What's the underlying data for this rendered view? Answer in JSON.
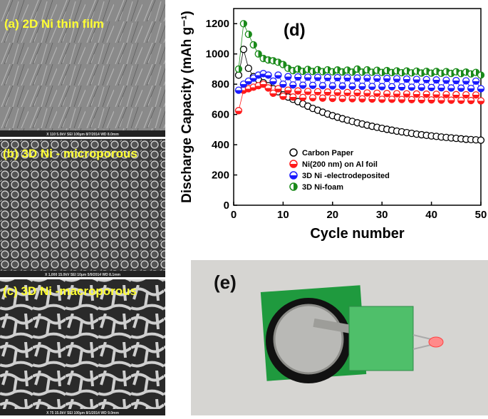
{
  "panels": [
    {
      "label": "(a) 2D Ni thin film",
      "info": "X 110  5.0kV  SEI  100µm  8/7/2014  WD 8.0mm"
    },
    {
      "label": "(b) 3D Ni - microporous",
      "info": "X 1,000  15.0kV  SEI  10µm  5/9/2014  WD 8.1mm"
    },
    {
      "label": "(c) 3D Ni -macroporous",
      "info": "X 75  15.0kV  SEI  100µm  8/1/2014  WD 9.0mm"
    }
  ],
  "chart_data": {
    "type": "line",
    "panel_label": "(d)",
    "x_label": "Cycle number",
    "y_label": "Discharge Capacity (mAh g⁻¹)",
    "x": [
      1,
      2,
      3,
      4,
      5,
      6,
      7,
      8,
      9,
      10,
      11,
      12,
      13,
      14,
      15,
      16,
      17,
      18,
      19,
      20,
      21,
      22,
      23,
      24,
      25,
      26,
      27,
      28,
      29,
      30,
      31,
      32,
      33,
      34,
      35,
      36,
      37,
      38,
      39,
      40,
      41,
      42,
      43,
      44,
      45,
      46,
      47,
      48,
      49,
      50
    ],
    "xlim": [
      0,
      50
    ],
    "xticks": [
      0,
      10,
      20,
      30,
      40,
      50
    ],
    "ylim": [
      0,
      1300
    ],
    "yticks": [
      0,
      200,
      400,
      600,
      800,
      1000,
      1200
    ],
    "series": [
      {
        "name": "Carbon Paper",
        "color": "#000000",
        "values": [
          860,
          1030,
          905,
          850,
          830,
          810,
          790,
          770,
          750,
          730,
          715,
          700,
          685,
          670,
          655,
          640,
          628,
          615,
          603,
          592,
          582,
          572,
          563,
          554,
          545,
          537,
          529,
          522,
          515,
          508,
          502,
          496,
          490,
          485,
          480,
          475,
          470,
          466,
          462,
          458,
          455,
          451,
          448,
          445,
          442,
          439,
          436,
          434,
          432,
          430
        ]
      },
      {
        "name": "Ni(200 nm) on Al foil",
        "color": "#ff1a1a",
        "values": [
          625,
          760,
          770,
          780,
          790,
          800,
          775,
          740,
          770,
          720,
          760,
          715,
          755,
          712,
          752,
          710,
          750,
          708,
          748,
          706,
          746,
          705,
          745,
          704,
          744,
          703,
          742,
          702,
          740,
          700,
          738,
          700,
          737,
          699,
          736,
          698,
          735,
          697,
          734,
          696,
          733,
          695,
          732,
          694,
          731,
          693,
          730,
          692,
          729,
          690
        ]
      },
      {
        "name": "3D Ni -electrodeposited",
        "color": "#1a1aff",
        "values": [
          760,
          800,
          820,
          840,
          860,
          870,
          860,
          820,
          860,
          800,
          850,
          795,
          848,
          793,
          846,
          792,
          845,
          790,
          844,
          789,
          843,
          788,
          842,
          787,
          841,
          786,
          840,
          785,
          839,
          784,
          838,
          783,
          836,
          782,
          834,
          780,
          832,
          779,
          830,
          778,
          828,
          776,
          826,
          775,
          824,
          774,
          822,
          772,
          820,
          770
        ]
      },
      {
        "name": "3D Ni-foam",
        "color": "#1a8a1a",
        "values": [
          900,
          1200,
          1130,
          1060,
          1000,
          970,
          960,
          955,
          945,
          930,
          905,
          890,
          900,
          885,
          898,
          884,
          896,
          883,
          895,
          882,
          894,
          881,
          893,
          880,
          900,
          880,
          895,
          879,
          892,
          878,
          890,
          877,
          888,
          876,
          887,
          875,
          886,
          874,
          885,
          873,
          884,
          872,
          883,
          871,
          882,
          870,
          880,
          868,
          878,
          860
        ]
      }
    ]
  },
  "photo": {
    "label": "(e)"
  }
}
